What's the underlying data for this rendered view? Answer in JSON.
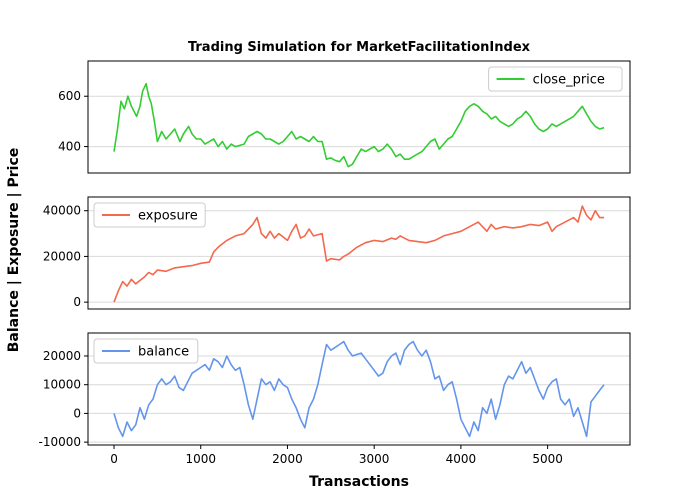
{
  "chart_data": {
    "type": "line",
    "title": "Trading Simulation for MarketFacilitationIndex",
    "xlabel": "Transactions",
    "ylabel": "Balance | Exposure | Price",
    "xlim": [
      -300,
      5950
    ],
    "xticks": [
      0,
      1000,
      2000,
      3000,
      4000,
      5000
    ],
    "grid": "horizontal",
    "panels": [
      {
        "name": "close_price",
        "color": "#33cc33",
        "legend": "top-right",
        "ylim": [
          295,
          740
        ],
        "yticks": [
          400,
          600
        ],
        "points": [
          [
            0,
            380
          ],
          [
            40,
            470
          ],
          [
            80,
            580
          ],
          [
            120,
            550
          ],
          [
            160,
            600
          ],
          [
            200,
            560
          ],
          [
            260,
            520
          ],
          [
            300,
            560
          ],
          [
            330,
            620
          ],
          [
            370,
            650
          ],
          [
            400,
            600
          ],
          [
            430,
            570
          ],
          [
            470,
            490
          ],
          [
            500,
            420
          ],
          [
            550,
            460
          ],
          [
            600,
            430
          ],
          [
            650,
            450
          ],
          [
            700,
            470
          ],
          [
            760,
            420
          ],
          [
            800,
            450
          ],
          [
            860,
            480
          ],
          [
            900,
            450
          ],
          [
            950,
            430
          ],
          [
            1000,
            430
          ],
          [
            1050,
            410
          ],
          [
            1100,
            420
          ],
          [
            1150,
            430
          ],
          [
            1200,
            400
          ],
          [
            1250,
            420
          ],
          [
            1300,
            390
          ],
          [
            1350,
            410
          ],
          [
            1400,
            400
          ],
          [
            1500,
            410
          ],
          [
            1550,
            440
          ],
          [
            1600,
            450
          ],
          [
            1650,
            460
          ],
          [
            1700,
            450
          ],
          [
            1750,
            430
          ],
          [
            1800,
            430
          ],
          [
            1850,
            420
          ],
          [
            1900,
            410
          ],
          [
            1950,
            420
          ],
          [
            2000,
            440
          ],
          [
            2050,
            460
          ],
          [
            2100,
            430
          ],
          [
            2150,
            440
          ],
          [
            2200,
            430
          ],
          [
            2250,
            420
          ],
          [
            2300,
            440
          ],
          [
            2350,
            420
          ],
          [
            2400,
            420
          ],
          [
            2450,
            350
          ],
          [
            2500,
            355
          ],
          [
            2550,
            345
          ],
          [
            2600,
            340
          ],
          [
            2650,
            360
          ],
          [
            2700,
            320
          ],
          [
            2750,
            330
          ],
          [
            2800,
            360
          ],
          [
            2850,
            390
          ],
          [
            2900,
            380
          ],
          [
            2950,
            390
          ],
          [
            3000,
            400
          ],
          [
            3050,
            380
          ],
          [
            3100,
            390
          ],
          [
            3150,
            410
          ],
          [
            3200,
            390
          ],
          [
            3250,
            360
          ],
          [
            3300,
            370
          ],
          [
            3350,
            350
          ],
          [
            3400,
            350
          ],
          [
            3450,
            360
          ],
          [
            3500,
            370
          ],
          [
            3550,
            380
          ],
          [
            3600,
            400
          ],
          [
            3650,
            420
          ],
          [
            3700,
            430
          ],
          [
            3750,
            390
          ],
          [
            3800,
            410
          ],
          [
            3850,
            430
          ],
          [
            3900,
            440
          ],
          [
            3950,
            470
          ],
          [
            4000,
            500
          ],
          [
            4050,
            540
          ],
          [
            4100,
            560
          ],
          [
            4150,
            570
          ],
          [
            4200,
            560
          ],
          [
            4250,
            540
          ],
          [
            4300,
            530
          ],
          [
            4350,
            510
          ],
          [
            4400,
            520
          ],
          [
            4450,
            500
          ],
          [
            4500,
            490
          ],
          [
            4550,
            480
          ],
          [
            4600,
            490
          ],
          [
            4650,
            510
          ],
          [
            4700,
            520
          ],
          [
            4750,
            540
          ],
          [
            4800,
            520
          ],
          [
            4850,
            490
          ],
          [
            4900,
            470
          ],
          [
            4950,
            460
          ],
          [
            5000,
            470
          ],
          [
            5050,
            490
          ],
          [
            5100,
            480
          ],
          [
            5150,
            490
          ],
          [
            5200,
            500
          ],
          [
            5250,
            510
          ],
          [
            5300,
            520
          ],
          [
            5350,
            540
          ],
          [
            5400,
            560
          ],
          [
            5450,
            530
          ],
          [
            5500,
            500
          ],
          [
            5550,
            480
          ],
          [
            5600,
            470
          ],
          [
            5650,
            475
          ]
        ]
      },
      {
        "name": "exposure",
        "color": "#f4684c",
        "legend": "top-left",
        "ylim": [
          -3000,
          46000
        ],
        "yticks": [
          0,
          20000,
          40000
        ],
        "points": [
          [
            0,
            0
          ],
          [
            50,
            5000
          ],
          [
            100,
            9000
          ],
          [
            150,
            7000
          ],
          [
            200,
            10000
          ],
          [
            250,
            8000
          ],
          [
            300,
            9500
          ],
          [
            350,
            11000
          ],
          [
            400,
            13000
          ],
          [
            450,
            12000
          ],
          [
            500,
            14000
          ],
          [
            600,
            13500
          ],
          [
            700,
            15000
          ],
          [
            800,
            15500
          ],
          [
            900,
            16000
          ],
          [
            1000,
            17000
          ],
          [
            1100,
            17500
          ],
          [
            1150,
            22000
          ],
          [
            1200,
            24000
          ],
          [
            1300,
            27000
          ],
          [
            1400,
            29000
          ],
          [
            1500,
            30000
          ],
          [
            1600,
            34000
          ],
          [
            1650,
            37000
          ],
          [
            1700,
            30000
          ],
          [
            1750,
            28000
          ],
          [
            1800,
            31000
          ],
          [
            1850,
            28000
          ],
          [
            1900,
            30000
          ],
          [
            2000,
            27000
          ],
          [
            2050,
            31000
          ],
          [
            2100,
            34000
          ],
          [
            2150,
            28000
          ],
          [
            2200,
            29000
          ],
          [
            2250,
            32000
          ],
          [
            2300,
            29000
          ],
          [
            2400,
            30000
          ],
          [
            2450,
            18000
          ],
          [
            2500,
            19000
          ],
          [
            2600,
            18500
          ],
          [
            2650,
            20000
          ],
          [
            2700,
            21000
          ],
          [
            2800,
            24000
          ],
          [
            2900,
            26000
          ],
          [
            3000,
            27000
          ],
          [
            3100,
            26500
          ],
          [
            3200,
            28000
          ],
          [
            3250,
            27500
          ],
          [
            3300,
            29000
          ],
          [
            3400,
            27000
          ],
          [
            3500,
            26500
          ],
          [
            3600,
            26000
          ],
          [
            3700,
            27000
          ],
          [
            3800,
            29000
          ],
          [
            3900,
            30000
          ],
          [
            4000,
            31000
          ],
          [
            4100,
            33000
          ],
          [
            4200,
            35000
          ],
          [
            4300,
            31000
          ],
          [
            4350,
            34000
          ],
          [
            4400,
            32000
          ],
          [
            4500,
            33000
          ],
          [
            4600,
            32500
          ],
          [
            4700,
            33000
          ],
          [
            4800,
            34000
          ],
          [
            4900,
            33500
          ],
          [
            5000,
            35000
          ],
          [
            5050,
            31000
          ],
          [
            5100,
            33000
          ],
          [
            5200,
            35000
          ],
          [
            5300,
            37000
          ],
          [
            5350,
            35000
          ],
          [
            5400,
            42000
          ],
          [
            5450,
            38000
          ],
          [
            5500,
            36000
          ],
          [
            5550,
            40000
          ],
          [
            5600,
            37000
          ],
          [
            5650,
            37000
          ]
        ]
      },
      {
        "name": "balance",
        "color": "#6495ed",
        "legend": "top-left",
        "ylim": [
          -11000,
          28000
        ],
        "yticks": [
          -10000,
          0,
          10000,
          20000
        ],
        "points": [
          [
            0,
            0
          ],
          [
            50,
            -5000
          ],
          [
            100,
            -8000
          ],
          [
            150,
            -3000
          ],
          [
            200,
            -6000
          ],
          [
            250,
            -4000
          ],
          [
            300,
            2000
          ],
          [
            350,
            -2000
          ],
          [
            400,
            3000
          ],
          [
            450,
            5000
          ],
          [
            500,
            10000
          ],
          [
            550,
            12000
          ],
          [
            600,
            10000
          ],
          [
            650,
            11000
          ],
          [
            700,
            13000
          ],
          [
            750,
            9000
          ],
          [
            800,
            8000
          ],
          [
            850,
            11000
          ],
          [
            900,
            14000
          ],
          [
            1000,
            16000
          ],
          [
            1050,
            17000
          ],
          [
            1100,
            15000
          ],
          [
            1150,
            19000
          ],
          [
            1200,
            18000
          ],
          [
            1250,
            16000
          ],
          [
            1300,
            20000
          ],
          [
            1350,
            17000
          ],
          [
            1400,
            15000
          ],
          [
            1450,
            16000
          ],
          [
            1500,
            10000
          ],
          [
            1550,
            3000
          ],
          [
            1600,
            -2000
          ],
          [
            1650,
            5000
          ],
          [
            1700,
            12000
          ],
          [
            1750,
            10000
          ],
          [
            1800,
            11000
          ],
          [
            1850,
            8000
          ],
          [
            1900,
            12000
          ],
          [
            1950,
            10000
          ],
          [
            2000,
            9000
          ],
          [
            2050,
            5000
          ],
          [
            2100,
            2000
          ],
          [
            2150,
            -2000
          ],
          [
            2200,
            -5000
          ],
          [
            2250,
            2000
          ],
          [
            2300,
            5000
          ],
          [
            2350,
            10000
          ],
          [
            2400,
            17000
          ],
          [
            2450,
            24000
          ],
          [
            2500,
            22000
          ],
          [
            2550,
            23000
          ],
          [
            2600,
            24000
          ],
          [
            2650,
            25000
          ],
          [
            2700,
            22000
          ],
          [
            2750,
            20000
          ],
          [
            2800,
            20500
          ],
          [
            2850,
            21000
          ],
          [
            2900,
            19000
          ],
          [
            3000,
            15000
          ],
          [
            3050,
            13000
          ],
          [
            3100,
            14000
          ],
          [
            3150,
            18000
          ],
          [
            3200,
            20000
          ],
          [
            3250,
            21000
          ],
          [
            3300,
            17000
          ],
          [
            3350,
            22000
          ],
          [
            3400,
            24000
          ],
          [
            3450,
            25000
          ],
          [
            3500,
            22000
          ],
          [
            3550,
            20000
          ],
          [
            3600,
            22000
          ],
          [
            3650,
            18000
          ],
          [
            3700,
            12000
          ],
          [
            3750,
            13000
          ],
          [
            3800,
            8000
          ],
          [
            3850,
            10000
          ],
          [
            3900,
            11000
          ],
          [
            3950,
            5000
          ],
          [
            4000,
            -2000
          ],
          [
            4050,
            -5000
          ],
          [
            4100,
            -8000
          ],
          [
            4150,
            -3000
          ],
          [
            4200,
            -6000
          ],
          [
            4250,
            2000
          ],
          [
            4300,
            0
          ],
          [
            4350,
            5000
          ],
          [
            4400,
            -2000
          ],
          [
            4450,
            3000
          ],
          [
            4500,
            10000
          ],
          [
            4550,
            13000
          ],
          [
            4600,
            12000
          ],
          [
            4650,
            15000
          ],
          [
            4700,
            18000
          ],
          [
            4750,
            14000
          ],
          [
            4800,
            16000
          ],
          [
            4850,
            12000
          ],
          [
            4900,
            8000
          ],
          [
            4950,
            5000
          ],
          [
            5000,
            9000
          ],
          [
            5050,
            11000
          ],
          [
            5100,
            12000
          ],
          [
            5150,
            5000
          ],
          [
            5200,
            3000
          ],
          [
            5250,
            5000
          ],
          [
            5300,
            -1000
          ],
          [
            5350,
            2000
          ],
          [
            5400,
            -3000
          ],
          [
            5450,
            -8000
          ],
          [
            5500,
            4000
          ],
          [
            5550,
            6000
          ],
          [
            5600,
            8000
          ],
          [
            5650,
            10000
          ]
        ]
      }
    ]
  }
}
